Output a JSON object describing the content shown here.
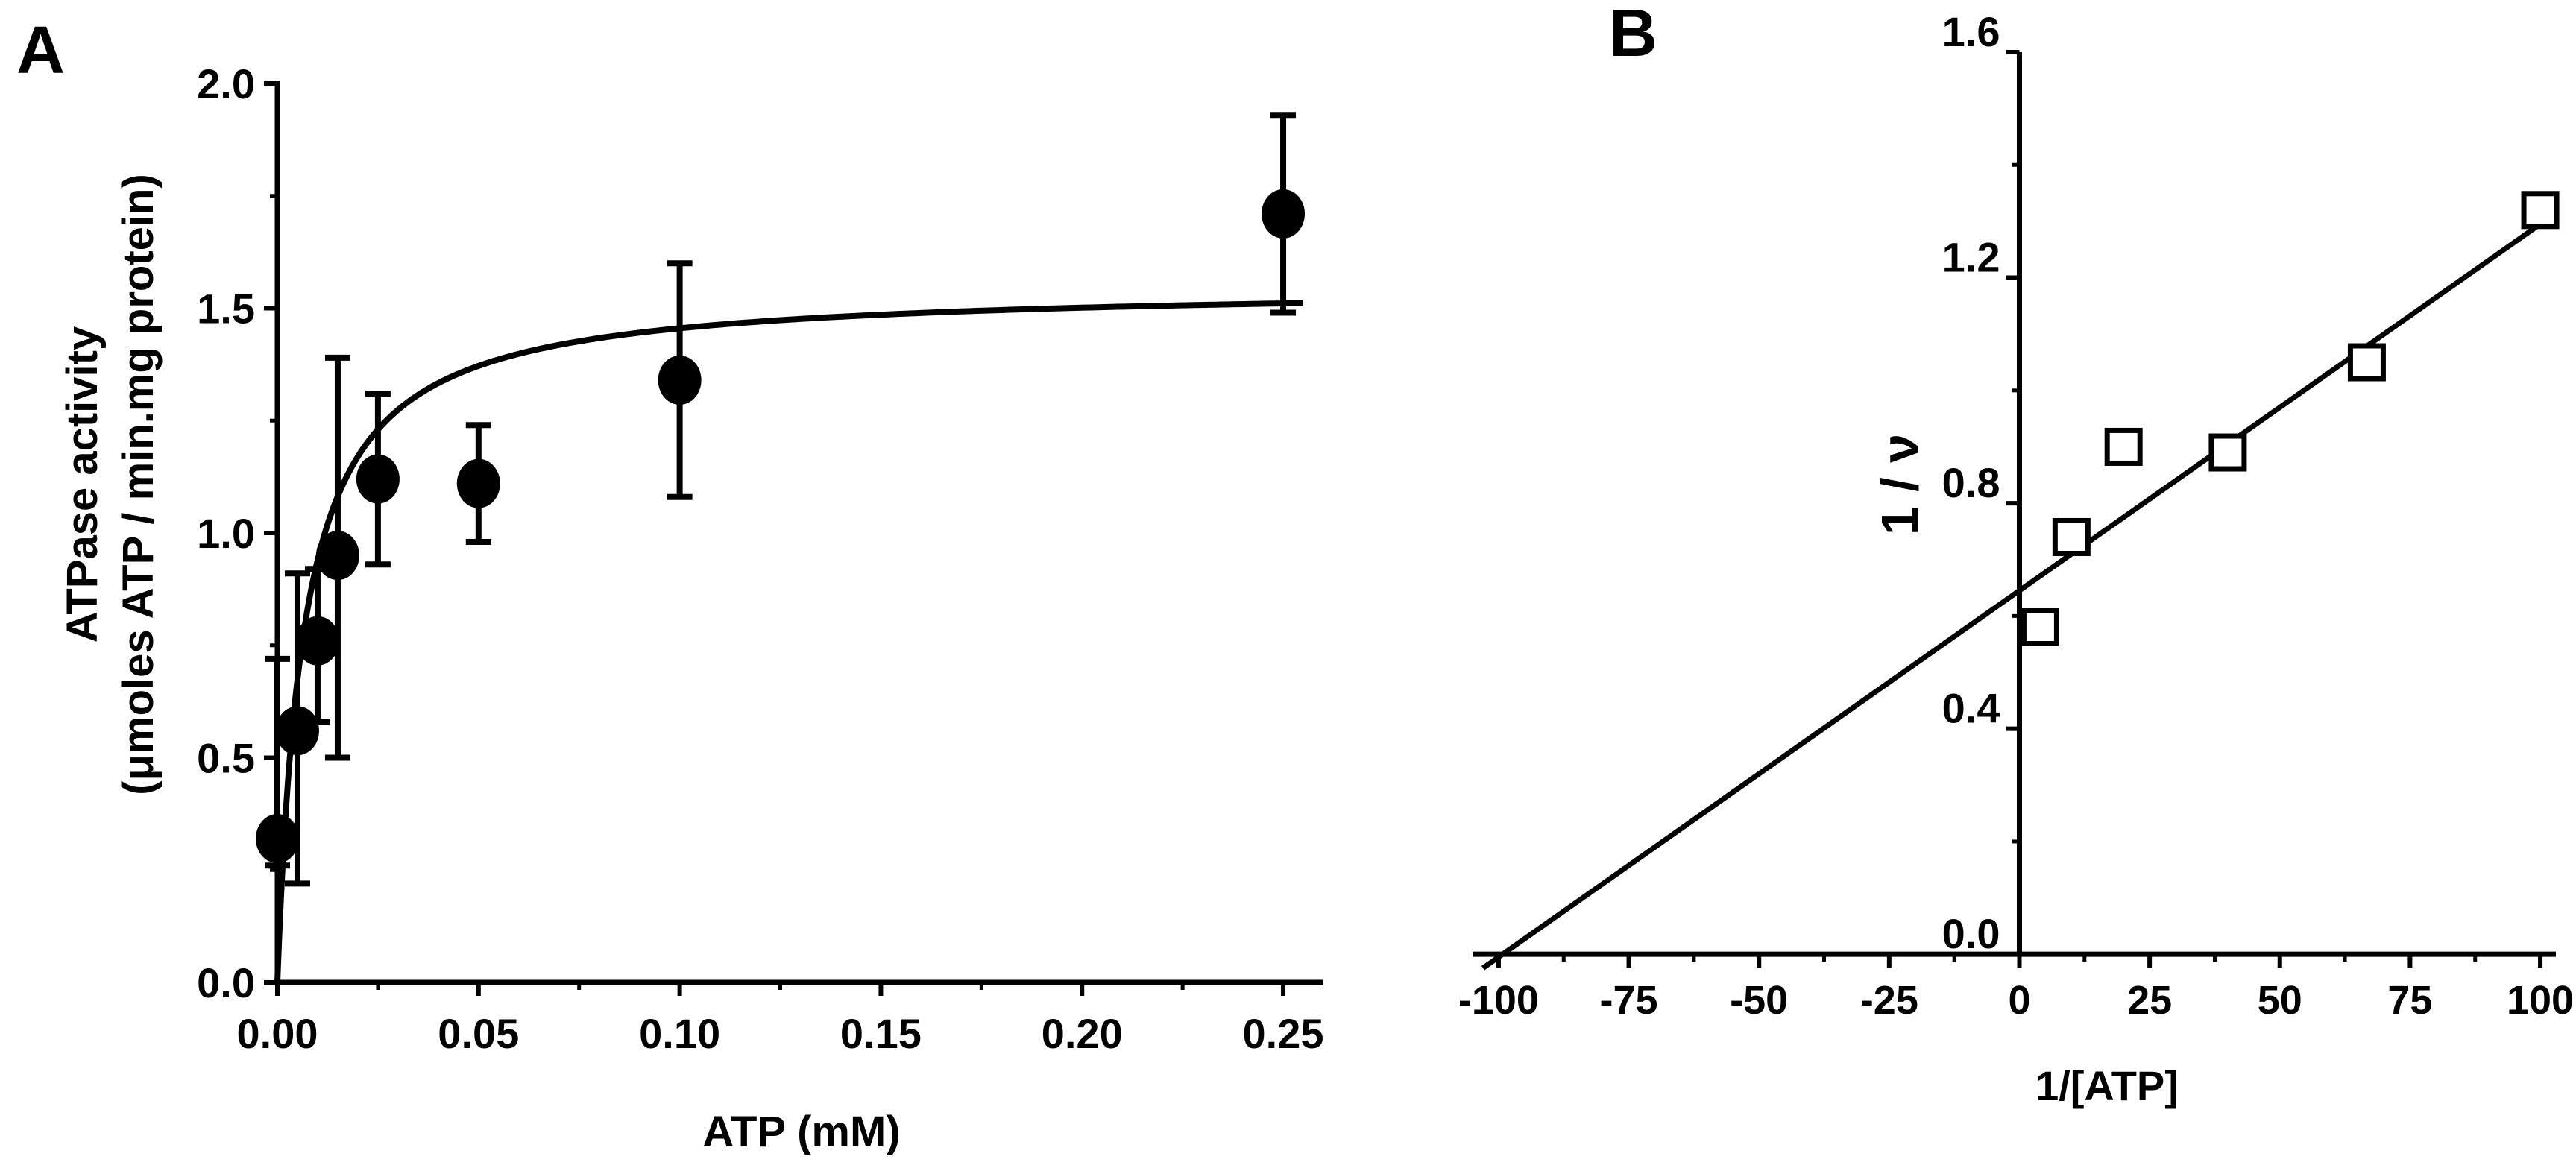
{
  "chart_data": [
    {
      "panel_label": "A",
      "type": "scatter",
      "xlabel": "ATP (mM)",
      "ylabel_line1": "ATPase activity",
      "ylabel_line2": "(μmoles ATP / min.mg protein)",
      "xlim": [
        0,
        0.26
      ],
      "ylim": [
        0,
        2.0
      ],
      "xticks": [
        0.0,
        0.05,
        0.1,
        0.15,
        0.2,
        0.25
      ],
      "xtick_labels": [
        "0.00",
        "0.05",
        "0.10",
        "0.15",
        "0.20",
        "0.25"
      ],
      "yticks": [
        0.0,
        0.5,
        1.0,
        1.5,
        2.0
      ],
      "ytick_labels": [
        "0.0",
        "0.5",
        "1.0",
        "1.5",
        "2.0"
      ],
      "grid": false,
      "points": [
        {
          "x": 0.0,
          "y": 0.32,
          "err_low": 0.26,
          "err_high": 0.72
        },
        {
          "x": 0.005,
          "y": 0.56,
          "err_low": 0.22,
          "err_high": 0.91
        },
        {
          "x": 0.01,
          "y": 0.76,
          "err_low": 0.58,
          "err_high": 0.92
        },
        {
          "x": 0.015,
          "y": 0.95,
          "err_low": 0.5,
          "err_high": 1.39
        },
        {
          "x": 0.025,
          "y": 1.12,
          "err_low": 0.93,
          "err_high": 1.31
        },
        {
          "x": 0.05,
          "y": 1.11,
          "err_low": 0.98,
          "err_high": 1.24
        },
        {
          "x": 0.1,
          "y": 1.34,
          "err_low": 1.08,
          "err_high": 1.6
        },
        {
          "x": 0.25,
          "y": 1.71,
          "err_low": 1.49,
          "err_high": 1.93
        }
      ],
      "fit": {
        "model": "michaelis-menten",
        "vmax": 1.55,
        "km": 0.0065,
        "x_end": 0.255
      }
    },
    {
      "panel_label": "B",
      "type": "scatter",
      "xlabel": "1/[ATP]",
      "ylabel": "1 / ν",
      "xlim": [
        -105,
        103
      ],
      "ylim": [
        -0.05,
        1.6
      ],
      "xticks": [
        -100,
        -75,
        -50,
        -25,
        0,
        25,
        50,
        75,
        100
      ],
      "xtick_labels": [
        "-100",
        "-75",
        "-50",
        "-25",
        "0",
        "25",
        "50",
        "75",
        "100"
      ],
      "yticks": [
        0.0,
        0.4,
        0.8,
        1.2,
        1.6
      ],
      "ytick_labels": [
        "0.0",
        "0.4",
        "0.8",
        "1.2",
        "1.6"
      ],
      "grid": false,
      "points": [
        {
          "x": 4,
          "y": 0.58
        },
        {
          "x": 10,
          "y": 0.74
        },
        {
          "x": 20,
          "y": 0.9
        },
        {
          "x": 40,
          "y": 0.89
        },
        {
          "x": 66.7,
          "y": 1.05
        },
        {
          "x": 100,
          "y": 1.32
        }
      ],
      "fit": {
        "model": "linear",
        "slope": 0.0065,
        "intercept": 0.645,
        "x_start": -103,
        "x_end": 100
      }
    }
  ]
}
